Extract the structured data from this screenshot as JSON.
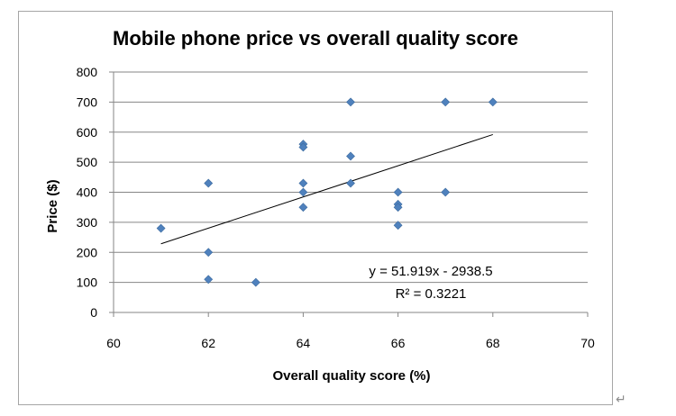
{
  "chart_data": {
    "type": "scatter",
    "title": "Mobile phone price vs overall quality score",
    "xlabel": "Overall quality score (%)",
    "ylabel": "Price ($)",
    "xlim": [
      60,
      70
    ],
    "ylim": [
      0,
      800
    ],
    "x_ticks": [
      "60",
      "62",
      "64",
      "66",
      "68",
      "70"
    ],
    "y_ticks": [
      "0",
      "100",
      "200",
      "300",
      "400",
      "500",
      "600",
      "700",
      "800"
    ],
    "grid": "horizontal",
    "marker": "diamond",
    "marker_color": "#4f81bd",
    "points": [
      {
        "x": 61,
        "y": 280
      },
      {
        "x": 62,
        "y": 430
      },
      {
        "x": 62,
        "y": 200
      },
      {
        "x": 62,
        "y": 110
      },
      {
        "x": 63,
        "y": 100
      },
      {
        "x": 64,
        "y": 560
      },
      {
        "x": 64,
        "y": 550
      },
      {
        "x": 64,
        "y": 430
      },
      {
        "x": 64,
        "y": 400
      },
      {
        "x": 64,
        "y": 350
      },
      {
        "x": 65,
        "y": 700
      },
      {
        "x": 65,
        "y": 520
      },
      {
        "x": 65,
        "y": 430
      },
      {
        "x": 66,
        "y": 400
      },
      {
        "x": 66,
        "y": 360
      },
      {
        "x": 66,
        "y": 350
      },
      {
        "x": 66,
        "y": 290
      },
      {
        "x": 67,
        "y": 700
      },
      {
        "x": 67,
        "y": 400
      },
      {
        "x": 68,
        "y": 700
      }
    ],
    "trendline": {
      "slope": 51.919,
      "intercept": -2938.5,
      "x_range": [
        61,
        68
      ],
      "color": "#000000"
    },
    "annotations": {
      "equation": "y = 51.919x - 2938.5",
      "r_squared": "R² = 0.3221"
    }
  },
  "return_mark": "↵"
}
